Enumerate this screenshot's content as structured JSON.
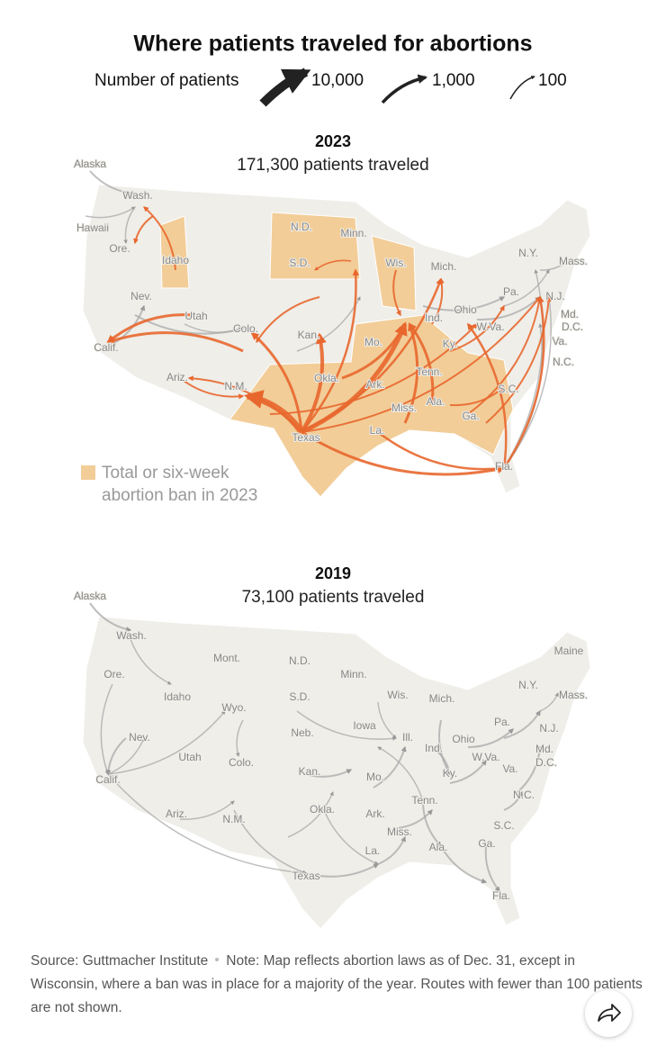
{
  "title": "Where patients traveled for abortions",
  "legend": {
    "label": "Number of patients",
    "items": [
      "10,000",
      "1,000",
      "100"
    ]
  },
  "maps": [
    {
      "year": "2023",
      "subtitle": "171,300 patients traveled",
      "labels": [
        "Alaska",
        "Wash.",
        "Hawaii",
        "Ore.",
        "Idaho",
        "N.D.",
        "Minn.",
        "S.D.",
        "Wis.",
        "Mich.",
        "N.Y.",
        "Mass.",
        "Nev.",
        "Utah",
        "Colo.",
        "Kan.",
        "Mo.",
        "Ind.",
        "Ohio",
        "W.Va.",
        "Pa.",
        "N.J.",
        "Md.",
        "D.C.",
        "Va.",
        "Calif.",
        "Ky.",
        "Ariz.",
        "N.M.",
        "Okla.",
        "Ark.",
        "Tenn.",
        "N.C.",
        "S.C.",
        "Miss.",
        "Ala.",
        "Ga.",
        "Texas",
        "La.",
        "Fla."
      ],
      "ban_legend": [
        "Total or six-week",
        "abortion ban in 2023"
      ]
    },
    {
      "year": "2019",
      "subtitle": "73,100 patients traveled",
      "labels": [
        "Alaska",
        "Wash.",
        "Ore.",
        "Mont.",
        "N.D.",
        "Minn.",
        "Maine",
        "Idaho",
        "S.D.",
        "Wis.",
        "Mich.",
        "N.Y.",
        "Mass.",
        "Wyo.",
        "Iowa",
        "Neb.",
        "Pa.",
        "N.J.",
        "Nev.",
        "Ill.",
        "Ohio",
        "Ind.",
        "Md.",
        "W.Va.",
        "D.C.",
        "Utah",
        "Colo.",
        "Kan.",
        "Mo.",
        "Calif.",
        "Ky.",
        "Va.",
        "Tenn.",
        "N.C.",
        "Ariz.",
        "N.M.",
        "Okla.",
        "Ark.",
        "Miss.",
        "S.C.",
        "Ala.",
        "Ga.",
        "La.",
        "Texas",
        "Fla."
      ]
    }
  ],
  "footer": {
    "source": "Source: Guttmacher Institute",
    "note": "Note: Map reflects abortion laws as of Dec. 31, except in Wisconsin, where a ban was in place for a majority of the year. Routes with fewer than 100 patients are not shown."
  }
}
